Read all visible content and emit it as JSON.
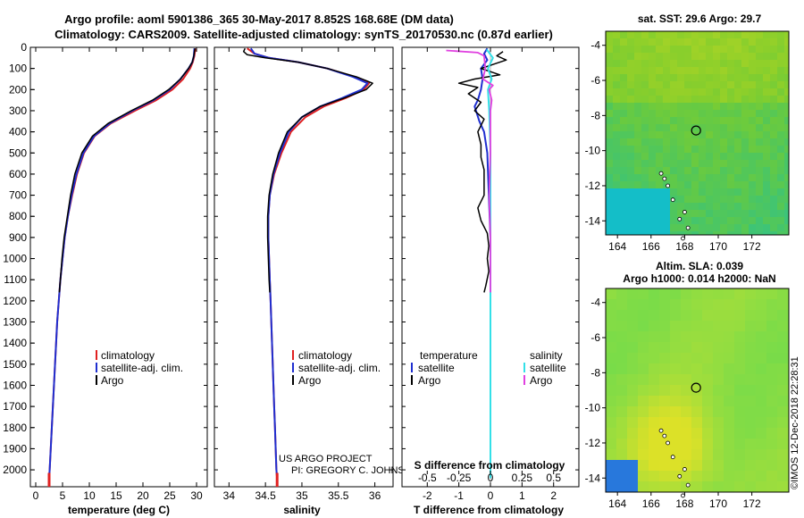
{
  "title_line1": "Argo profile: aoml 5901386_365 30-May-2017 8.852S 168.68E (DM data)",
  "title_line2": "Climatology: CARS2009. Satellite-adjusted climatology: synTS_20170530.nc (0.87d earlier)",
  "credits": {
    "line1": "US ARGO PROJECT",
    "line2": "PI: GREGORY C. JOHNSON",
    "watermark": "©IMOS 12-Dec-2018 22:28:31"
  },
  "colors": {
    "climatology": "#e02020",
    "satellite": "#1f2fd0",
    "argo": "#000000",
    "sal_satellite": "#33e0e8",
    "sal_argo": "#e040e0"
  },
  "chart_data": [
    {
      "type": "line",
      "name": "temperature-profile",
      "xlabel": "temperature (deg C)",
      "ylabel": "",
      "xlim": [
        -1,
        32
      ],
      "ylim": [
        2080,
        0
      ],
      "xticks": [
        0,
        5,
        10,
        15,
        20,
        25,
        30
      ],
      "yticks": [
        0,
        100,
        200,
        300,
        400,
        500,
        600,
        700,
        800,
        900,
        1000,
        1100,
        1200,
        1300,
        1400,
        1500,
        1600,
        1700,
        1800,
        1900,
        2000
      ],
      "legend": [
        "climatology",
        "satellite-adj. clim.",
        "Argo"
      ],
      "series": [
        {
          "name": "climatology",
          "points": [
            [
              29.8,
              5
            ],
            [
              29.6,
              40
            ],
            [
              29.3,
              70
            ],
            [
              28.8,
              100
            ],
            [
              27.5,
              150
            ],
            [
              25.5,
              200
            ],
            [
              22.5,
              250
            ],
            [
              18.5,
              300
            ],
            [
              14.0,
              360
            ],
            [
              11.0,
              420
            ],
            [
              9.0,
              500
            ],
            [
              7.7,
              600
            ],
            [
              6.8,
              700
            ],
            [
              6.0,
              800
            ],
            [
              5.4,
              900
            ],
            [
              5.0,
              1000
            ],
            [
              4.6,
              1100
            ],
            [
              4.3,
              1200
            ],
            [
              4.0,
              1300
            ],
            [
              3.8,
              1400
            ],
            [
              3.6,
              1500
            ],
            [
              3.4,
              1600
            ],
            [
              3.2,
              1700
            ],
            [
              3.0,
              1800
            ],
            [
              2.8,
              1900
            ],
            [
              2.6,
              2000
            ],
            [
              2.5,
              2040
            ]
          ]
        },
        {
          "name": "satellite-adj. clim.",
          "points": [
            [
              29.6,
              5
            ],
            [
              29.5,
              40
            ],
            [
              29.2,
              70
            ],
            [
              28.5,
              100
            ],
            [
              27.0,
              150
            ],
            [
              25.0,
              200
            ],
            [
              22.0,
              250
            ],
            [
              18.0,
              300
            ],
            [
              13.8,
              360
            ],
            [
              10.9,
              420
            ],
            [
              8.9,
              500
            ],
            [
              7.6,
              600
            ],
            [
              6.7,
              700
            ],
            [
              6.0,
              800
            ],
            [
              5.4,
              900
            ],
            [
              5.0,
              1000
            ],
            [
              4.6,
              1100
            ],
            [
              4.3,
              1200
            ],
            [
              4.0,
              1300
            ],
            [
              3.8,
              1400
            ],
            [
              3.6,
              1500
            ],
            [
              3.4,
              1600
            ],
            [
              3.2,
              1700
            ],
            [
              3.0,
              1800
            ],
            [
              2.8,
              1900
            ],
            [
              2.6,
              2000
            ],
            [
              2.5,
              2040
            ]
          ]
        },
        {
          "name": "Argo",
          "points": [
            [
              29.7,
              5
            ],
            [
              29.5,
              40
            ],
            [
              29.2,
              70
            ],
            [
              28.5,
              100
            ],
            [
              27.0,
              150
            ],
            [
              24.8,
              200
            ],
            [
              21.8,
              250
            ],
            [
              17.8,
              300
            ],
            [
              13.5,
              360
            ],
            [
              10.6,
              420
            ],
            [
              8.6,
              500
            ],
            [
              7.3,
              600
            ],
            [
              6.5,
              700
            ],
            [
              5.9,
              800
            ],
            [
              5.3,
              900
            ],
            [
              4.9,
              1000
            ],
            [
              4.6,
              1100
            ],
            [
              4.4,
              1160
            ]
          ]
        }
      ]
    },
    {
      "type": "line",
      "name": "salinity-profile",
      "xlabel": "salinity",
      "xlim": [
        33.8,
        36.25
      ],
      "ylim": [
        2080,
        0
      ],
      "xticks": [
        34,
        34.5,
        35,
        35.5,
        36
      ],
      "xtick_labels": [
        "34",
        "34.5",
        "35",
        "35.5",
        "36"
      ],
      "legend": [
        "climatology",
        "satellite-adj. clim.",
        "Argo"
      ],
      "series": [
        {
          "name": "climatology",
          "points": [
            [
              34.25,
              5
            ],
            [
              34.35,
              30
            ],
            [
              34.55,
              50
            ],
            [
              34.95,
              70
            ],
            [
              35.35,
              100
            ],
            [
              35.72,
              140
            ],
            [
              35.92,
              170
            ],
            [
              35.85,
              200
            ],
            [
              35.6,
              240
            ],
            [
              35.3,
              280
            ],
            [
              35.05,
              330
            ],
            [
              34.85,
              400
            ],
            [
              34.72,
              500
            ],
            [
              34.62,
              600
            ],
            [
              34.56,
              700
            ],
            [
              34.54,
              800
            ],
            [
              34.54,
              900
            ],
            [
              34.55,
              1000
            ],
            [
              34.56,
              1100
            ],
            [
              34.57,
              1200
            ],
            [
              34.58,
              1300
            ],
            [
              34.59,
              1400
            ],
            [
              34.6,
              1500
            ],
            [
              34.61,
              1600
            ],
            [
              34.62,
              1700
            ],
            [
              34.63,
              1800
            ],
            [
              34.64,
              1900
            ],
            [
              34.65,
              2000
            ],
            [
              34.66,
              2040
            ]
          ]
        },
        {
          "name": "satellite-adj. clim.",
          "points": [
            [
              34.3,
              5
            ],
            [
              34.35,
              30
            ],
            [
              34.55,
              50
            ],
            [
              34.95,
              70
            ],
            [
              35.35,
              100
            ],
            [
              35.7,
              140
            ],
            [
              35.9,
              170
            ],
            [
              35.82,
              200
            ],
            [
              35.55,
              240
            ],
            [
              35.25,
              280
            ],
            [
              35.0,
              330
            ],
            [
              34.82,
              400
            ],
            [
              34.7,
              500
            ],
            [
              34.61,
              600
            ],
            [
              34.56,
              700
            ],
            [
              34.54,
              800
            ],
            [
              34.54,
              900
            ],
            [
              34.55,
              1000
            ],
            [
              34.56,
              1100
            ],
            [
              34.57,
              1200
            ],
            [
              34.58,
              1300
            ],
            [
              34.59,
              1400
            ],
            [
              34.6,
              1500
            ],
            [
              34.61,
              1600
            ],
            [
              34.62,
              1700
            ],
            [
              34.63,
              1800
            ],
            [
              34.64,
              1900
            ],
            [
              34.65,
              2000
            ],
            [
              34.66,
              2040
            ]
          ]
        },
        {
          "name": "Argo",
          "points": [
            [
              34.22,
              5
            ],
            [
              34.2,
              20
            ],
            [
              34.25,
              35
            ],
            [
              34.5,
              50
            ],
            [
              34.95,
              70
            ],
            [
              35.35,
              100
            ],
            [
              35.75,
              140
            ],
            [
              35.97,
              170
            ],
            [
              35.88,
              200
            ],
            [
              35.58,
              240
            ],
            [
              35.25,
              280
            ],
            [
              35.0,
              330
            ],
            [
              34.8,
              400
            ],
            [
              34.68,
              500
            ],
            [
              34.6,
              600
            ],
            [
              34.55,
              700
            ],
            [
              34.53,
              800
            ],
            [
              34.53,
              900
            ],
            [
              34.54,
              1000
            ],
            [
              34.55,
              1100
            ],
            [
              34.56,
              1160
            ]
          ]
        }
      ]
    },
    {
      "type": "line",
      "name": "difference-from-climatology",
      "xlabel": "T difference from climatology",
      "xlabel_top": "S difference from climatology",
      "xlim": [
        -2.8,
        2.8
      ],
      "ylim": [
        2080,
        0
      ],
      "xticks": [
        -2,
        -1,
        0,
        1,
        2
      ],
      "s_xticks": [
        -0.5,
        -0.25,
        0,
        0.25,
        0.5
      ],
      "s_tick_labels": [
        "-0.5",
        "-0.25",
        "0",
        "0.25",
        "0.5"
      ],
      "legend_titles": [
        "temperature",
        "salinity"
      ],
      "legend_temp": [
        "satellite",
        "Argo"
      ],
      "legend_sal": [
        "satellite",
        "Argo"
      ],
      "series": [
        {
          "name": "T satellite",
          "points": [
            [
              -0.1,
              5
            ],
            [
              -0.2,
              30
            ],
            [
              -0.1,
              60
            ],
            [
              -0.3,
              100
            ],
            [
              -0.25,
              150
            ],
            [
              -0.3,
              200
            ],
            [
              -0.4,
              250
            ],
            [
              -0.5,
              280
            ],
            [
              -0.35,
              350
            ],
            [
              -0.2,
              400
            ],
            [
              -0.1,
              500
            ],
            [
              -0.05,
              700
            ],
            [
              0,
              900
            ],
            [
              0,
              2040
            ]
          ]
        },
        {
          "name": "T Argo",
          "points": [
            [
              0.4,
              20
            ],
            [
              0.2,
              40
            ],
            [
              0.5,
              60
            ],
            [
              0.1,
              80
            ],
            [
              -0.3,
              100
            ],
            [
              0.3,
              130
            ],
            [
              -0.5,
              150
            ],
            [
              -1.0,
              170
            ],
            [
              -0.4,
              190
            ],
            [
              -0.7,
              220
            ],
            [
              -0.3,
              260
            ],
            [
              -0.5,
              300
            ],
            [
              -0.2,
              340
            ],
            [
              -0.4,
              400
            ],
            [
              -0.3,
              460
            ],
            [
              -0.3,
              520
            ],
            [
              -0.2,
              580
            ],
            [
              -0.2,
              640
            ],
            [
              -0.2,
              700
            ],
            [
              -0.4,
              760
            ],
            [
              -0.3,
              820
            ],
            [
              -0.1,
              880
            ],
            [
              -0.05,
              940
            ],
            [
              -0.1,
              1000
            ],
            [
              -0.05,
              1060
            ],
            [
              -0.15,
              1130
            ],
            [
              -0.2,
              1160
            ]
          ]
        },
        {
          "name": "S satellite",
          "points": [
            [
              -0.03,
              10
            ],
            [
              0.02,
              50
            ],
            [
              -0.02,
              100
            ],
            [
              0.01,
              150
            ],
            [
              -0.02,
              200
            ],
            [
              -0.01,
              300
            ],
            [
              0,
              500
            ],
            [
              0,
              2040
            ]
          ]
        },
        {
          "name": "S Argo",
          "points": [
            [
              -0.35,
              15
            ],
            [
              -0.1,
              25
            ],
            [
              -0.05,
              40
            ],
            [
              -0.04,
              100
            ],
            [
              -0.06,
              150
            ],
            [
              0.02,
              180
            ],
            [
              -0.01,
              200
            ],
            [
              0.01,
              250
            ],
            [
              0,
              300
            ],
            [
              0,
              500
            ],
            [
              -0.01,
              700
            ],
            [
              0,
              900
            ],
            [
              0,
              1160
            ]
          ]
        }
      ]
    }
  ],
  "maps": [
    {
      "name": "sst-map",
      "title": "sat. SST: 29.6 Argo: 29.7",
      "xticks": [
        "164",
        "166",
        "168",
        "170",
        "172"
      ],
      "yticks": [
        "-4",
        "-6",
        "-8",
        "-10",
        "-12",
        "-14"
      ],
      "xlim": [
        163.3,
        174.2
      ],
      "ylim": [
        -14.8,
        -3.2
      ],
      "argo_lon": 168.68,
      "argo_lat": -8.852
    },
    {
      "name": "sla-map",
      "title_line1": "Altim. SLA: 0.039",
      "title_line2": "Argo h1000: 0.014 h2000: NaN",
      "xticks": [
        "164",
        "166",
        "168",
        "170",
        "172"
      ],
      "yticks": [
        "-4",
        "-6",
        "-8",
        "-10",
        "-12",
        "-14"
      ],
      "xlim": [
        163.3,
        174.2
      ],
      "ylim": [
        -14.8,
        -3.2
      ],
      "argo_lon": 168.68,
      "argo_lat": -8.852
    }
  ]
}
